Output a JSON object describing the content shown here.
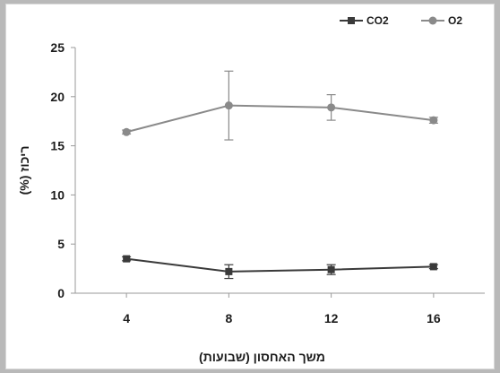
{
  "chart_data": {
    "type": "line",
    "title": "",
    "xlabel": "משך האחסון (שבועות)",
    "ylabel": "ריכוז (%)",
    "x": [
      4,
      8,
      12,
      16
    ],
    "xticks": [
      "4",
      "8",
      "12",
      "16"
    ],
    "ylim": [
      0,
      25
    ],
    "yticks": [
      "0",
      "5",
      "10",
      "15",
      "20",
      "25"
    ],
    "grid": false,
    "legend_position": "top-right",
    "series": [
      {
        "name": "CO2",
        "marker": "square",
        "color": "#3a3a3a",
        "values": [
          3.5,
          2.2,
          2.4,
          2.7
        ],
        "errors": [
          0.2,
          0.7,
          0.5,
          0.2
        ]
      },
      {
        "name": "O2",
        "marker": "circle",
        "color": "#8a8a8a",
        "values": [
          16.4,
          19.1,
          18.9,
          17.6
        ],
        "errors": [
          0.2,
          3.5,
          1.3,
          0.3
        ]
      }
    ]
  }
}
